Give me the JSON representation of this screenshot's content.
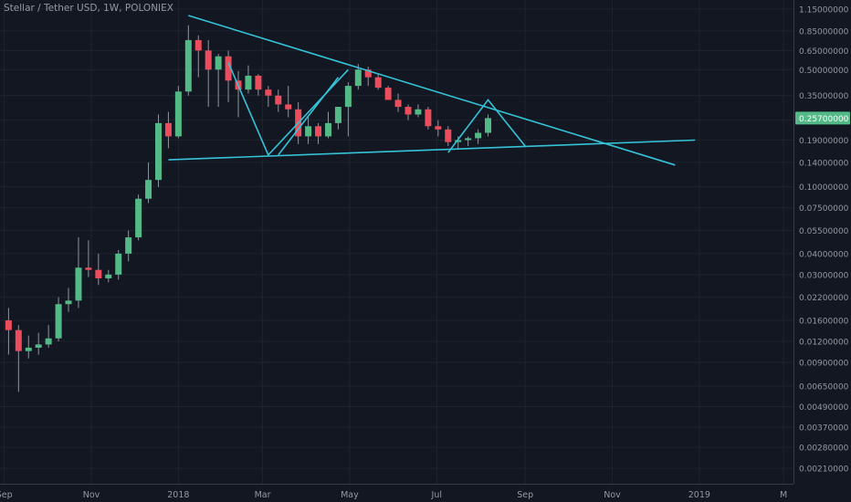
{
  "chart_data": {
    "type": "candlestick",
    "title": "Stellar / Tether USD, 1W, POLONIEX",
    "y_scale": "log",
    "ylim": [
      0.0017,
      1.3
    ],
    "y_ticks": [
      "1.15000000",
      "0.85000000",
      "0.65000000",
      "0.50000000",
      "0.35000000",
      "0.25000000",
      "0.19000000",
      "0.14000000",
      "0.10000000",
      "0.07500000",
      "0.05500000",
      "0.04000000",
      "0.03000000",
      "0.02200000",
      "0.01600000",
      "0.01200000",
      "0.00900000",
      "0.00650000",
      "0.00490000",
      "0.00370000",
      "0.00280000",
      "0.00210000"
    ],
    "x_ticks": [
      {
        "label": "Sep",
        "date": "2017-09-01"
      },
      {
        "label": "Nov",
        "date": "2017-11-01"
      },
      {
        "label": "2018",
        "date": "2018-01-01"
      },
      {
        "label": "Mar",
        "date": "2018-03-01"
      },
      {
        "label": "May",
        "date": "2018-05-01"
      },
      {
        "label": "Jul",
        "date": "2018-07-01"
      },
      {
        "label": "Sep",
        "date": "2018-09-01"
      },
      {
        "label": "Nov",
        "date": "2018-11-01"
      },
      {
        "label": "2019",
        "date": "2019-01-01"
      },
      {
        "label": "M",
        "date": "2019-03-01"
      }
    ],
    "xlim": [
      "2017-08-29",
      "2019-03-08"
    ],
    "current_price": {
      "label": "0.25700000",
      "value": 0.257
    },
    "candles": [
      {
        "date": "2017-09-04",
        "open": 0.016,
        "high": 0.019,
        "low": 0.01,
        "close": 0.014
      },
      {
        "date": "2017-09-11",
        "open": 0.014,
        "high": 0.015,
        "low": 0.006,
        "close": 0.0105
      },
      {
        "date": "2017-09-18",
        "open": 0.0105,
        "high": 0.013,
        "low": 0.0095,
        "close": 0.011
      },
      {
        "date": "2017-09-25",
        "open": 0.011,
        "high": 0.0135,
        "low": 0.01,
        "close": 0.0115
      },
      {
        "date": "2017-10-02",
        "open": 0.0115,
        "high": 0.015,
        "low": 0.011,
        "close": 0.0125
      },
      {
        "date": "2017-10-09",
        "open": 0.0125,
        "high": 0.022,
        "low": 0.012,
        "close": 0.02
      },
      {
        "date": "2017-10-16",
        "open": 0.02,
        "high": 0.025,
        "low": 0.018,
        "close": 0.021
      },
      {
        "date": "2017-10-23",
        "open": 0.021,
        "high": 0.05,
        "low": 0.019,
        "close": 0.033
      },
      {
        "date": "2017-10-30",
        "open": 0.033,
        "high": 0.048,
        "low": 0.029,
        "close": 0.032
      },
      {
        "date": "2017-11-06",
        "open": 0.032,
        "high": 0.04,
        "low": 0.026,
        "close": 0.0285
      },
      {
        "date": "2017-11-13",
        "open": 0.0285,
        "high": 0.032,
        "low": 0.027,
        "close": 0.03
      },
      {
        "date": "2017-11-20",
        "open": 0.03,
        "high": 0.042,
        "low": 0.028,
        "close": 0.04
      },
      {
        "date": "2017-11-27",
        "open": 0.04,
        "high": 0.055,
        "low": 0.036,
        "close": 0.05
      },
      {
        "date": "2017-12-04",
        "open": 0.05,
        "high": 0.09,
        "low": 0.048,
        "close": 0.085
      },
      {
        "date": "2017-12-11",
        "open": 0.085,
        "high": 0.14,
        "low": 0.08,
        "close": 0.11
      },
      {
        "date": "2017-12-18",
        "open": 0.11,
        "high": 0.27,
        "low": 0.1,
        "close": 0.24
      },
      {
        "date": "2017-12-25",
        "open": 0.24,
        "high": 0.28,
        "low": 0.17,
        "close": 0.2
      },
      {
        "date": "2018-01-01",
        "open": 0.2,
        "high": 0.4,
        "low": 0.195,
        "close": 0.37
      },
      {
        "date": "2018-01-08",
        "open": 0.37,
        "high": 0.92,
        "low": 0.35,
        "close": 0.75
      },
      {
        "date": "2018-01-15",
        "open": 0.75,
        "high": 0.8,
        "low": 0.45,
        "close": 0.65
      },
      {
        "date": "2018-01-22",
        "open": 0.65,
        "high": 0.75,
        "low": 0.3,
        "close": 0.5
      },
      {
        "date": "2018-01-29",
        "open": 0.5,
        "high": 0.62,
        "low": 0.3,
        "close": 0.6
      },
      {
        "date": "2018-02-05",
        "open": 0.6,
        "high": 0.65,
        "low": 0.32,
        "close": 0.43
      },
      {
        "date": "2018-02-12",
        "open": 0.43,
        "high": 0.49,
        "low": 0.26,
        "close": 0.38
      },
      {
        "date": "2018-02-19",
        "open": 0.38,
        "high": 0.53,
        "low": 0.36,
        "close": 0.46
      },
      {
        "date": "2018-02-26",
        "open": 0.46,
        "high": 0.47,
        "low": 0.35,
        "close": 0.38
      },
      {
        "date": "2018-03-05",
        "open": 0.38,
        "high": 0.4,
        "low": 0.3,
        "close": 0.35
      },
      {
        "date": "2018-03-12",
        "open": 0.35,
        "high": 0.38,
        "low": 0.28,
        "close": 0.31
      },
      {
        "date": "2018-03-19",
        "open": 0.31,
        "high": 0.4,
        "low": 0.26,
        "close": 0.29
      },
      {
        "date": "2018-03-26",
        "open": 0.29,
        "high": 0.32,
        "low": 0.18,
        "close": 0.2
      },
      {
        "date": "2018-04-02",
        "open": 0.2,
        "high": 0.26,
        "low": 0.18,
        "close": 0.23
      },
      {
        "date": "2018-04-09",
        "open": 0.23,
        "high": 0.24,
        "low": 0.18,
        "close": 0.2
      },
      {
        "date": "2018-04-16",
        "open": 0.2,
        "high": 0.28,
        "low": 0.195,
        "close": 0.24
      },
      {
        "date": "2018-04-23",
        "open": 0.24,
        "high": 0.3,
        "low": 0.22,
        "close": 0.3
      },
      {
        "date": "2018-04-30",
        "open": 0.3,
        "high": 0.42,
        "low": 0.2,
        "close": 0.4
      },
      {
        "date": "2018-05-07",
        "open": 0.4,
        "high": 0.54,
        "low": 0.38,
        "close": 0.5
      },
      {
        "date": "2018-05-14",
        "open": 0.5,
        "high": 0.52,
        "low": 0.4,
        "close": 0.45
      },
      {
        "date": "2018-05-21",
        "open": 0.45,
        "high": 0.47,
        "low": 0.38,
        "close": 0.39
      },
      {
        "date": "2018-05-28",
        "open": 0.39,
        "high": 0.4,
        "low": 0.33,
        "close": 0.33
      },
      {
        "date": "2018-06-04",
        "open": 0.33,
        "high": 0.36,
        "low": 0.28,
        "close": 0.3
      },
      {
        "date": "2018-06-11",
        "open": 0.3,
        "high": 0.31,
        "low": 0.25,
        "close": 0.27
      },
      {
        "date": "2018-06-18",
        "open": 0.27,
        "high": 0.31,
        "low": 0.26,
        "close": 0.29
      },
      {
        "date": "2018-06-25",
        "open": 0.29,
        "high": 0.3,
        "low": 0.22,
        "close": 0.23
      },
      {
        "date": "2018-07-02",
        "open": 0.23,
        "high": 0.25,
        "low": 0.2,
        "close": 0.22
      },
      {
        "date": "2018-07-09",
        "open": 0.22,
        "high": 0.23,
        "low": 0.175,
        "close": 0.185
      },
      {
        "date": "2018-07-16",
        "open": 0.185,
        "high": 0.2,
        "low": 0.17,
        "close": 0.19
      },
      {
        "date": "2018-07-23",
        "open": 0.19,
        "high": 0.2,
        "low": 0.175,
        "close": 0.195
      },
      {
        "date": "2018-07-30",
        "open": 0.195,
        "high": 0.22,
        "low": 0.18,
        "close": 0.21
      },
      {
        "date": "2018-08-06",
        "open": 0.21,
        "high": 0.27,
        "low": 0.2,
        "close": 0.257
      }
    ],
    "drawings": [
      {
        "name": "resistance-line",
        "points": [
          {
            "date": "2018-01-08",
            "value": 1.05
          },
          {
            "date": "2018-12-15",
            "value": 0.135
          }
        ]
      },
      {
        "name": "support-line",
        "points": [
          {
            "date": "2017-12-25",
            "value": 0.145
          },
          {
            "date": "2018-12-29",
            "value": 0.19
          }
        ]
      },
      {
        "name": "zigzag-left",
        "points": [
          {
            "date": "2018-02-05",
            "value": 0.55
          },
          {
            "date": "2018-03-05",
            "value": 0.155
          },
          {
            "date": "2018-04-30",
            "value": 0.5
          }
        ]
      },
      {
        "name": "zigzag-inner",
        "points": [
          {
            "date": "2018-03-12",
            "value": 0.155
          },
          {
            "date": "2018-04-23",
            "value": 0.45
          }
        ]
      },
      {
        "name": "zigzag-right",
        "points": [
          {
            "date": "2018-07-09",
            "value": 0.16
          },
          {
            "date": "2018-08-06",
            "value": 0.33
          },
          {
            "date": "2018-09-01",
            "value": 0.175
          }
        ]
      }
    ],
    "colors": {
      "background": "#131722",
      "up": "#53b987",
      "down": "#eb4d5c",
      "wick": "#8f95a0",
      "drawing": "#35c3d8",
      "text": "#9598a1",
      "grid": "#1e2330",
      "price_label_bg": "#53b987"
    }
  }
}
